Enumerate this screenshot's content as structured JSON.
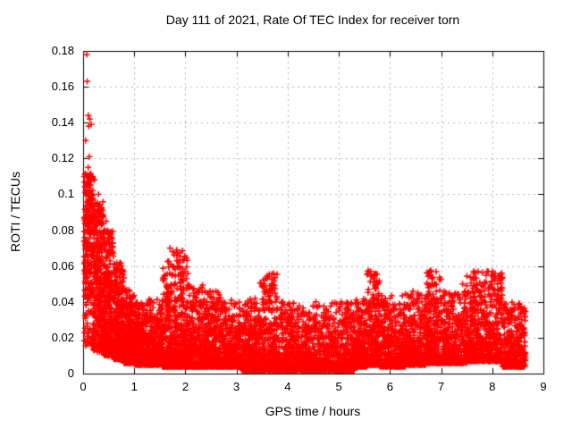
{
  "chart_data": {
    "type": "scatter",
    "title": "Day 111 of 2021, Rate Of TEC Index for receiver torn",
    "xlabel": "GPS time / hours",
    "ylabel": "ROTI / TECUs",
    "xlim": [
      0,
      9
    ],
    "ylim": [
      0,
      0.18
    ],
    "xticks": {
      "values": [
        0,
        1,
        2,
        3,
        4,
        5,
        6,
        7,
        8,
        9
      ],
      "labels": [
        "0",
        "1",
        "2",
        "3",
        "4",
        "5",
        "6",
        "7",
        "8",
        "9"
      ]
    },
    "yticks": {
      "values": [
        0,
        0.02,
        0.04,
        0.06,
        0.08,
        0.1,
        0.12,
        0.14,
        0.16,
        0.18
      ],
      "labels": [
        "0",
        "0.02",
        "0.04",
        "0.06",
        "0.08",
        "0.1",
        "0.12",
        "0.14",
        "0.16",
        "0.18"
      ]
    },
    "grid": {
      "show": true,
      "color": "#b3b3b3",
      "dash": [
        2,
        4
      ]
    },
    "frame_color": "#000000",
    "background": "#ffffff",
    "legend": null,
    "marker": {
      "shape": "plus",
      "size": 7,
      "stroke": 1.5,
      "color": "#ff0000"
    },
    "x_data_range": [
      0.01,
      8.65
    ],
    "series": [
      {
        "name": "ROTI",
        "color": "#ff0000",
        "seed": 7,
        "outliers": [
          [
            0.07,
            0.178
          ],
          [
            0.08,
            0.163
          ],
          [
            0.1,
            0.144
          ],
          [
            0.13,
            0.142
          ],
          [
            0.16,
            0.139
          ],
          [
            0.11,
            0.138
          ],
          [
            0.05,
            0.13
          ],
          [
            0.12,
            0.121
          ],
          [
            0.1,
            0.115
          ],
          [
            0.18,
            0.11
          ],
          [
            0.22,
            0.108
          ],
          [
            0.06,
            0.105
          ],
          [
            0.3,
            0.1
          ],
          [
            0.35,
            0.092
          ],
          [
            0.45,
            0.085
          ],
          [
            0.55,
            0.076
          ],
          [
            0.52,
            0.072
          ],
          [
            1.7,
            0.07
          ],
          [
            1.75,
            0.068
          ],
          [
            1.78,
            0.066
          ],
          [
            1.83,
            0.063
          ],
          [
            1.88,
            0.06
          ],
          [
            1.95,
            0.056
          ],
          [
            2.02,
            0.053
          ],
          [
            2.48,
            0.046
          ],
          [
            2.9,
            0.041
          ],
          [
            3.55,
            0.05
          ],
          [
            3.6,
            0.053
          ],
          [
            3.65,
            0.049
          ],
          [
            3.7,
            0.045
          ],
          [
            4.55,
            0.04
          ],
          [
            5.05,
            0.04
          ],
          [
            5.58,
            0.047
          ],
          [
            5.62,
            0.057
          ],
          [
            5.65,
            0.054
          ],
          [
            5.68,
            0.051
          ],
          [
            5.72,
            0.048
          ],
          [
            6.45,
            0.046
          ],
          [
            6.75,
            0.048
          ],
          [
            6.78,
            0.057
          ],
          [
            6.82,
            0.053
          ],
          [
            6.85,
            0.049
          ],
          [
            7.42,
            0.05
          ],
          [
            7.85,
            0.051
          ],
          [
            7.92,
            0.057
          ],
          [
            7.98,
            0.055
          ],
          [
            8.05,
            0.053
          ],
          [
            8.1,
            0.05
          ],
          [
            8.15,
            0.047
          ]
        ],
        "density_bands": [
          {
            "x0": 0.02,
            "x1": 0.2,
            "n": 260,
            "ymin": 0.015,
            "ymax": 0.112,
            "shape": 0.9
          },
          {
            "x0": 0.2,
            "x1": 0.4,
            "n": 300,
            "ymin": 0.012,
            "ymax": 0.096,
            "shape": 1.2
          },
          {
            "x0": 0.4,
            "x1": 0.6,
            "n": 300,
            "ymin": 0.01,
            "ymax": 0.08,
            "shape": 1.5
          },
          {
            "x0": 0.6,
            "x1": 0.8,
            "n": 300,
            "ymin": 0.008,
            "ymax": 0.062,
            "shape": 1.8
          },
          {
            "x0": 0.8,
            "x1": 1.0,
            "n": 310,
            "ymin": 0.006,
            "ymax": 0.047,
            "shape": 2.0
          },
          {
            "x0": 1.0,
            "x1": 1.25,
            "n": 330,
            "ymin": 0.005,
            "ymax": 0.04,
            "shape": 2.2
          },
          {
            "x0": 1.25,
            "x1": 1.55,
            "n": 360,
            "ymin": 0.005,
            "ymax": 0.042,
            "shape": 2.4
          },
          {
            "x0": 1.55,
            "x1": 1.8,
            "n": 330,
            "ymin": 0.004,
            "ymax": 0.065,
            "shape": 2.8
          },
          {
            "x0": 1.8,
            "x1": 2.05,
            "n": 330,
            "ymin": 0.004,
            "ymax": 0.07,
            "shape": 3.0
          },
          {
            "x0": 2.05,
            "x1": 2.35,
            "n": 360,
            "ymin": 0.004,
            "ymax": 0.05,
            "shape": 3.0
          },
          {
            "x0": 2.35,
            "x1": 2.7,
            "n": 400,
            "ymin": 0.004,
            "ymax": 0.046,
            "shape": 3.0
          },
          {
            "x0": 2.7,
            "x1": 3.1,
            "n": 430,
            "ymin": 0.004,
            "ymax": 0.04,
            "shape": 3.0
          },
          {
            "x0": 3.1,
            "x1": 3.45,
            "n": 400,
            "ymin": 0.002,
            "ymax": 0.042,
            "shape": 3.0
          },
          {
            "x0": 3.45,
            "x1": 3.8,
            "n": 380,
            "ymin": 0.002,
            "ymax": 0.056,
            "shape": 3.2
          },
          {
            "x0": 3.8,
            "x1": 4.3,
            "n": 480,
            "ymin": 0.002,
            "ymax": 0.04,
            "shape": 3.2
          },
          {
            "x0": 4.3,
            "x1": 4.8,
            "n": 480,
            "ymin": 0.002,
            "ymax": 0.038,
            "shape": 3.2
          },
          {
            "x0": 4.8,
            "x1": 5.3,
            "n": 480,
            "ymin": 0.002,
            "ymax": 0.04,
            "shape": 3.2
          },
          {
            "x0": 5.3,
            "x1": 5.55,
            "n": 280,
            "ymin": 0.004,
            "ymax": 0.042,
            "shape": 3.0
          },
          {
            "x0": 5.55,
            "x1": 5.8,
            "n": 270,
            "ymin": 0.005,
            "ymax": 0.058,
            "shape": 2.6
          },
          {
            "x0": 5.8,
            "x1": 6.3,
            "n": 450,
            "ymin": 0.004,
            "ymax": 0.044,
            "shape": 3.0
          },
          {
            "x0": 6.3,
            "x1": 6.7,
            "n": 380,
            "ymin": 0.005,
            "ymax": 0.045,
            "shape": 2.8
          },
          {
            "x0": 6.7,
            "x1": 7.0,
            "n": 320,
            "ymin": 0.006,
            "ymax": 0.058,
            "shape": 2.8
          },
          {
            "x0": 7.0,
            "x1": 7.5,
            "n": 430,
            "ymin": 0.006,
            "ymax": 0.046,
            "shape": 2.8
          },
          {
            "x0": 7.5,
            "x1": 8.2,
            "n": 600,
            "ymin": 0.007,
            "ymax": 0.058,
            "shape": 2.5
          },
          {
            "x0": 8.2,
            "x1": 8.65,
            "n": 380,
            "ymin": 0.004,
            "ymax": 0.04,
            "shape": 2.8
          }
        ]
      }
    ]
  }
}
